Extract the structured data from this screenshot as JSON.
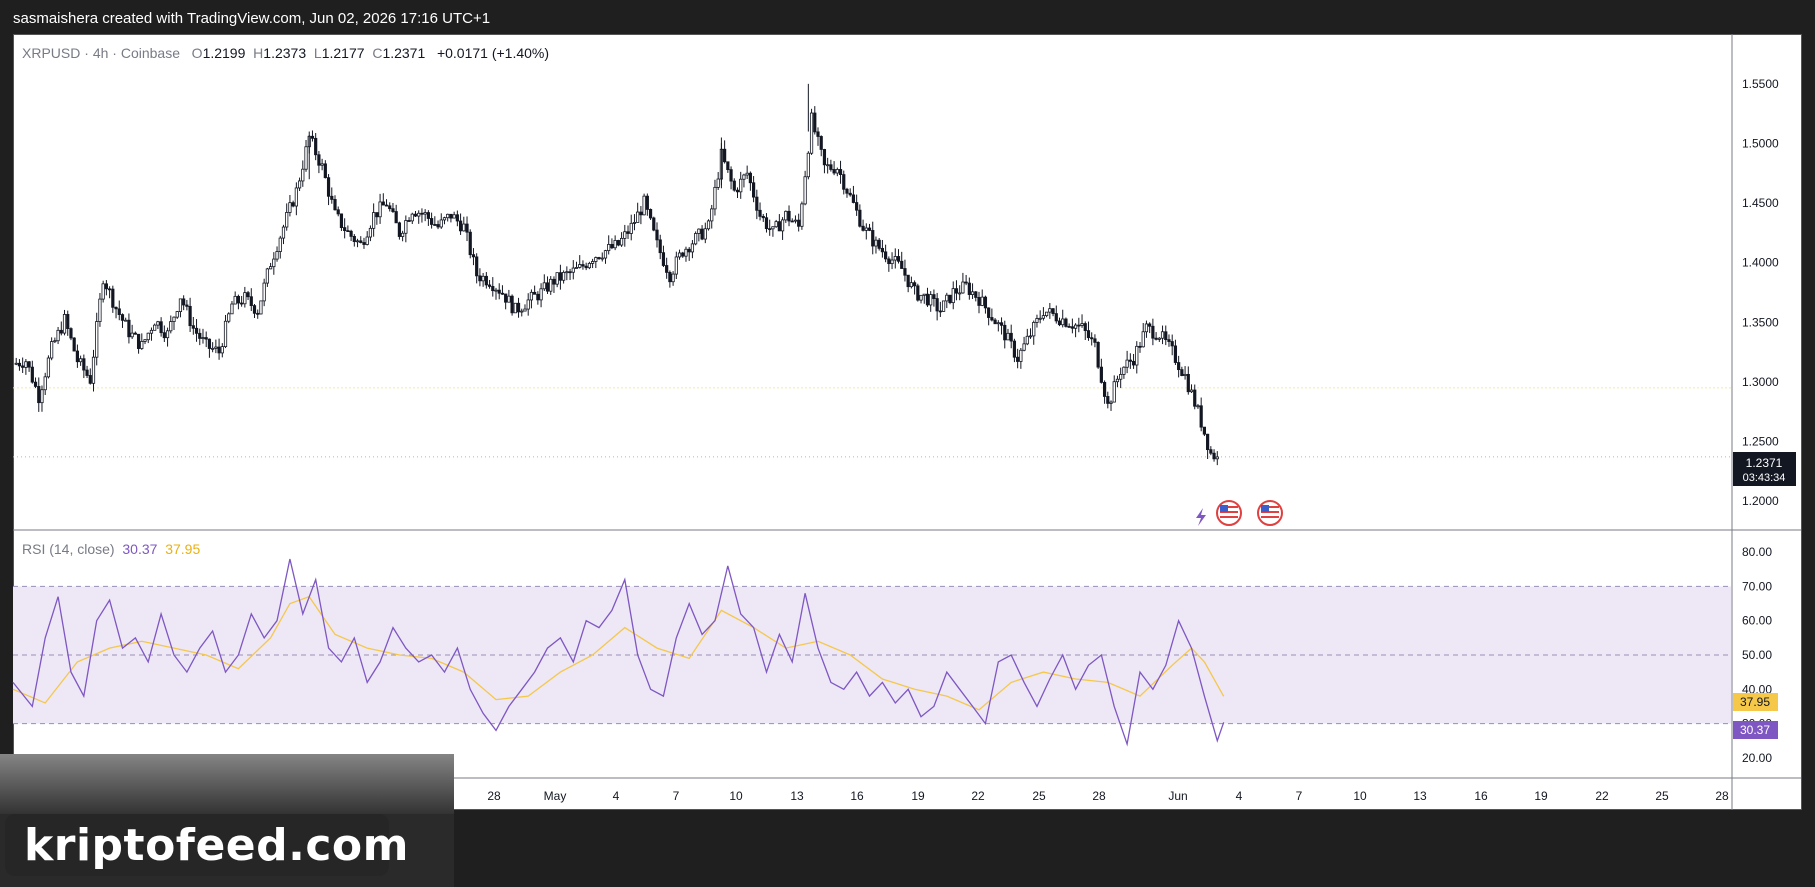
{
  "header": {
    "credit": "sasmaishera created with TradingView.com, Jun 02, 2026 17:16 UTC+1"
  },
  "legend": {
    "symbol": "XRPUSD",
    "interval": "4h",
    "exchange": "Coinbase",
    "open_label": "O",
    "open": "1.2199",
    "high_label": "H",
    "high": "1.2373",
    "low_label": "L",
    "low": "1.2177",
    "close_label": "C",
    "close": "1.2371",
    "change": "+0.0171 (+1.40%)"
  },
  "price_badge": {
    "price": "1.2371",
    "countdown": "03:43:34"
  },
  "rsi_legend": {
    "label": "RSI (14, close)",
    "rsi": "30.37",
    "ma": "37.95"
  },
  "rsi_badges": {
    "ma": "37.95",
    "rsi": "30.37"
  },
  "watermark": "kriptofeed.com",
  "colors": {
    "rsi": "#7e57c2",
    "rsi_ma": "#f5c84a",
    "band": "#ede7f6",
    "candle": "#131722",
    "badge": "#131722"
  },
  "icons": [
    "lightning-icon",
    "us-flag-event-icon",
    "us-flag-event-icon"
  ],
  "chart_data": [
    {
      "type": "candlestick",
      "symbol": "XRPUSD",
      "ylim": [
        1.18,
        1.57
      ],
      "y_ticks": [
        "1.5500",
        "1.5000",
        "1.4500",
        "1.4000",
        "1.3500",
        "1.3000",
        "1.2500",
        "1.2000"
      ],
      "x_ticks": [
        "28",
        "May",
        "4",
        "7",
        "10",
        "13",
        "16",
        "19",
        "22",
        "25",
        "28",
        "Jun",
        "4",
        "7",
        "10",
        "13",
        "16",
        "19",
        "22",
        "25",
        "28"
      ],
      "horizontal_line": 1.295,
      "last_price": 1.2371,
      "close_path": [
        [
          0,
          1.315
        ],
        [
          4,
          1.318
        ],
        [
          8,
          1.288
        ],
        [
          12,
          1.328
        ],
        [
          16,
          1.352
        ],
        [
          20,
          1.318
        ],
        [
          24,
          1.302
        ],
        [
          28,
          1.388
        ],
        [
          32,
          1.362
        ],
        [
          36,
          1.342
        ],
        [
          40,
          1.33
        ],
        [
          44,
          1.352
        ],
        [
          48,
          1.34
        ],
        [
          52,
          1.372
        ],
        [
          56,
          1.345
        ],
        [
          60,
          1.33
        ],
        [
          64,
          1.325
        ],
        [
          68,
          1.365
        ],
        [
          72,
          1.37
        ],
        [
          76,
          1.36
        ],
        [
          80,
          1.4
        ],
        [
          84,
          1.43
        ],
        [
          88,
          1.46
        ],
        [
          92,
          1.505
        ],
        [
          96,
          1.48
        ],
        [
          100,
          1.44
        ],
        [
          104,
          1.425
        ],
        [
          108,
          1.415
        ],
        [
          112,
          1.44
        ],
        [
          116,
          1.45
        ],
        [
          120,
          1.425
        ],
        [
          124,
          1.445
        ],
        [
          128,
          1.44
        ],
        [
          132,
          1.43
        ],
        [
          136,
          1.44
        ],
        [
          140,
          1.43
        ],
        [
          144,
          1.39
        ],
        [
          148,
          1.385
        ],
        [
          152,
          1.375
        ],
        [
          156,
          1.36
        ],
        [
          160,
          1.368
        ],
        [
          164,
          1.375
        ],
        [
          168,
          1.385
        ],
        [
          172,
          1.39
        ],
        [
          176,
          1.395
        ],
        [
          180,
          1.405
        ],
        [
          184,
          1.41
        ],
        [
          188,
          1.415
        ],
        [
          192,
          1.43
        ],
        [
          196,
          1.45
        ],
        [
          200,
          1.415
        ],
        [
          204,
          1.39
        ],
        [
          208,
          1.41
        ],
        [
          212,
          1.42
        ],
        [
          216,
          1.43
        ],
        [
          220,
          1.49
        ],
        [
          224,
          1.46
        ],
        [
          228,
          1.475
        ],
        [
          232,
          1.44
        ],
        [
          236,
          1.425
        ],
        [
          240,
          1.44
        ],
        [
          244,
          1.43
        ],
        [
          248,
          1.52
        ],
        [
          252,
          1.48
        ],
        [
          256,
          1.48
        ],
        [
          260,
          1.455
        ],
        [
          264,
          1.43
        ],
        [
          268,
          1.415
        ],
        [
          272,
          1.405
        ],
        [
          276,
          1.395
        ],
        [
          280,
          1.375
        ],
        [
          284,
          1.37
        ],
        [
          288,
          1.36
        ],
        [
          292,
          1.375
        ],
        [
          296,
          1.38
        ],
        [
          300,
          1.37
        ],
        [
          304,
          1.355
        ],
        [
          308,
          1.34
        ],
        [
          312,
          1.32
        ],
        [
          316,
          1.34
        ],
        [
          320,
          1.36
        ],
        [
          324,
          1.355
        ],
        [
          328,
          1.35
        ],
        [
          332,
          1.345
        ],
        [
          336,
          1.33
        ],
        [
          340,
          1.28
        ],
        [
          344,
          1.31
        ],
        [
          348,
          1.32
        ],
        [
          352,
          1.345
        ],
        [
          356,
          1.34
        ],
        [
          360,
          1.325
        ],
        [
          364,
          1.305
        ],
        [
          368,
          1.275
        ],
        [
          372,
          1.24
        ],
        [
          374,
          1.2371
        ]
      ],
      "key_extremes": {
        "high": 1.55,
        "low": 1.2177
      }
    },
    {
      "type": "line",
      "title": "RSI (14, close)",
      "ylim": [
        15,
        85
      ],
      "y_ticks": [
        "80.00",
        "70.00",
        "60.00",
        "50.00",
        "40.00",
        "30.00",
        "20.00"
      ],
      "bands": [
        70,
        50,
        30
      ],
      "series": [
        {
          "name": "RSI",
          "values": [
            [
              0,
              42
            ],
            [
              6,
              35
            ],
            [
              10,
              55
            ],
            [
              14,
              67
            ],
            [
              18,
              45
            ],
            [
              22,
              38
            ],
            [
              26,
              60
            ],
            [
              30,
              66
            ],
            [
              34,
              52
            ],
            [
              38,
              55
            ],
            [
              42,
              48
            ],
            [
              46,
              62
            ],
            [
              50,
              50
            ],
            [
              54,
              45
            ],
            [
              58,
              52
            ],
            [
              62,
              57
            ],
            [
              66,
              45
            ],
            [
              70,
              50
            ],
            [
              74,
              62
            ],
            [
              78,
              55
            ],
            [
              82,
              60
            ],
            [
              86,
              78
            ],
            [
              90,
              62
            ],
            [
              94,
              72
            ],
            [
              98,
              52
            ],
            [
              102,
              48
            ],
            [
              106,
              55
            ],
            [
              110,
              42
            ],
            [
              114,
              48
            ],
            [
              118,
              58
            ],
            [
              122,
              52
            ],
            [
              126,
              48
            ],
            [
              130,
              50
            ],
            [
              134,
              45
            ],
            [
              138,
              52
            ],
            [
              142,
              40
            ],
            [
              146,
              33
            ],
            [
              150,
              28
            ],
            [
              154,
              35
            ],
            [
              158,
              40
            ],
            [
              162,
              45
            ],
            [
              166,
              52
            ],
            [
              170,
              55
            ],
            [
              174,
              48
            ],
            [
              178,
              60
            ],
            [
              182,
              58
            ],
            [
              186,
              63
            ],
            [
              190,
              72
            ],
            [
              194,
              50
            ],
            [
              198,
              40
            ],
            [
              202,
              38
            ],
            [
              206,
              55
            ],
            [
              210,
              65
            ],
            [
              214,
              56
            ],
            [
              218,
              60
            ],
            [
              222,
              76
            ],
            [
              226,
              62
            ],
            [
              230,
              58
            ],
            [
              234,
              45
            ],
            [
              238,
              56
            ],
            [
              242,
              48
            ],
            [
              246,
              68
            ],
            [
              250,
              52
            ],
            [
              254,
              42
            ],
            [
              258,
              40
            ],
            [
              262,
              45
            ],
            [
              266,
              38
            ],
            [
              270,
              42
            ],
            [
              274,
              36
            ],
            [
              278,
              40
            ],
            [
              282,
              32
            ],
            [
              286,
              35
            ],
            [
              290,
              45
            ],
            [
              294,
              40
            ],
            [
              298,
              35
            ],
            [
              302,
              30
            ],
            [
              306,
              48
            ],
            [
              310,
              50
            ],
            [
              314,
              42
            ],
            [
              318,
              35
            ],
            [
              322,
              43
            ],
            [
              326,
              50
            ],
            [
              330,
              40
            ],
            [
              334,
              47
            ],
            [
              338,
              50
            ],
            [
              342,
              35
            ],
            [
              346,
              24
            ],
            [
              350,
              45
            ],
            [
              354,
              40
            ],
            [
              358,
              47
            ],
            [
              362,
              60
            ],
            [
              366,
              52
            ],
            [
              370,
              38
            ],
            [
              374,
              25
            ],
            [
              376,
              30.37
            ]
          ]
        },
        {
          "name": "RSI-based MA",
          "values": [
            [
              0,
              40
            ],
            [
              10,
              36
            ],
            [
              20,
              48
            ],
            [
              30,
              52
            ],
            [
              40,
              54
            ],
            [
              50,
              52
            ],
            [
              60,
              50
            ],
            [
              70,
              46
            ],
            [
              80,
              55
            ],
            [
              86,
              65
            ],
            [
              92,
              67
            ],
            [
              100,
              56
            ],
            [
              110,
              52
            ],
            [
              120,
              50
            ],
            [
              130,
              49
            ],
            [
              140,
              45
            ],
            [
              150,
              37
            ],
            [
              160,
              38
            ],
            [
              170,
              45
            ],
            [
              180,
              50
            ],
            [
              190,
              58
            ],
            [
              200,
              52
            ],
            [
              210,
              49
            ],
            [
              220,
              63
            ],
            [
              230,
              58
            ],
            [
              240,
              52
            ],
            [
              250,
              54
            ],
            [
              260,
              50
            ],
            [
              270,
              43
            ],
            [
              280,
              40
            ],
            [
              290,
              38
            ],
            [
              300,
              34
            ],
            [
              310,
              42
            ],
            [
              320,
              45
            ],
            [
              330,
              43
            ],
            [
              340,
              42
            ],
            [
              350,
              38
            ],
            [
              360,
              47
            ],
            [
              366,
              52
            ],
            [
              370,
              48
            ],
            [
              376,
              37.95
            ]
          ]
        }
      ]
    }
  ]
}
